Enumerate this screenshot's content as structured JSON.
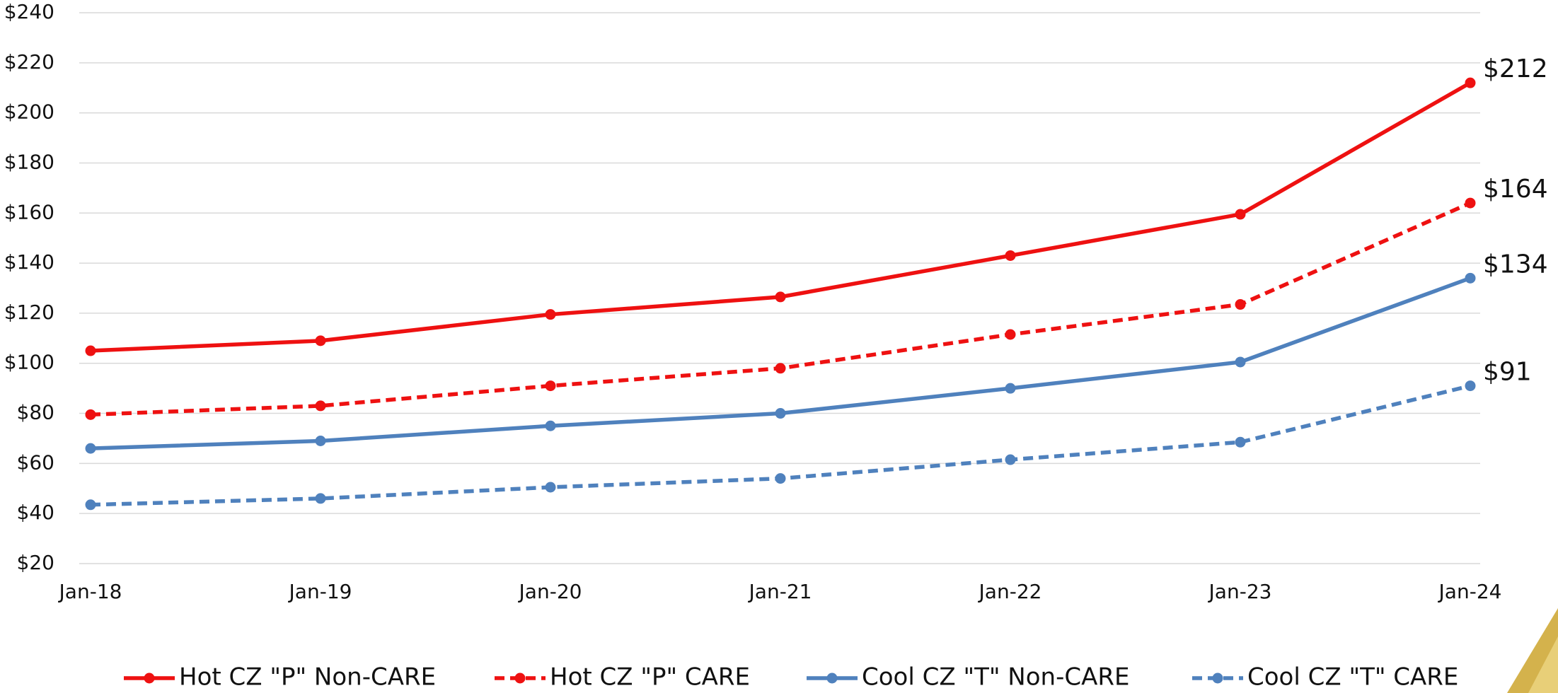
{
  "chart_data": {
    "type": "line",
    "categories": [
      "Jan-18",
      "Jan-19",
      "Jan-20",
      "Jan-21",
      "Jan-22",
      "Jan-23",
      "Jan-24"
    ],
    "series": [
      {
        "name": "Hot CZ \"P\" Non-CARE",
        "color": "#ee1111",
        "style": "solid",
        "values": [
          105,
          109,
          119.5,
          126.5,
          143,
          159.5,
          212
        ],
        "value_labels": [
          null,
          null,
          null,
          null,
          null,
          null,
          "$212"
        ]
      },
      {
        "name": "Hot CZ \"P\" CARE",
        "color": "#ee1111",
        "style": "dashed",
        "values": [
          79.5,
          83,
          91,
          98,
          111.5,
          123.5,
          164
        ],
        "value_labels": [
          null,
          null,
          null,
          null,
          null,
          null,
          "$164"
        ]
      },
      {
        "name": "Cool CZ \"T\" Non-CARE",
        "color": "#4f81bd",
        "style": "solid",
        "values": [
          66,
          69,
          75,
          80,
          90,
          100.5,
          134
        ],
        "value_labels": [
          null,
          null,
          null,
          null,
          null,
          null,
          "$134"
        ]
      },
      {
        "name": "Cool CZ \"T\" CARE",
        "color": "#4f81bd",
        "style": "dashed",
        "values": [
          43.5,
          46,
          50.5,
          54,
          61.5,
          68.5,
          91
        ],
        "value_labels": [
          null,
          null,
          null,
          null,
          null,
          null,
          "$91"
        ]
      }
    ],
    "ylim": [
      20,
      240
    ],
    "yticks": [
      {
        "value": 20,
        "label": "$20"
      },
      {
        "value": 40,
        "label": "$40"
      },
      {
        "value": 60,
        "label": "$60"
      },
      {
        "value": 80,
        "label": "$80"
      },
      {
        "value": 100,
        "label": "$100"
      },
      {
        "value": 120,
        "label": "$120"
      },
      {
        "value": 140,
        "label": "$140"
      },
      {
        "value": 160,
        "label": "$160"
      },
      {
        "value": 180,
        "label": "$180"
      },
      {
        "value": 200,
        "label": "$200"
      },
      {
        "value": 220,
        "label": "$220"
      },
      {
        "value": 240,
        "label": "$240"
      }
    ],
    "grid": true,
    "legend": "bottom"
  }
}
